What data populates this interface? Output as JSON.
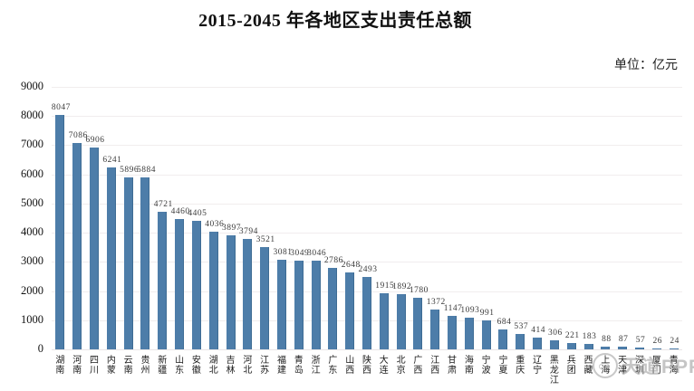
{
  "header": {
    "title": "2015-2045 年各地区支出责任总额",
    "unit_label": "单位：亿元"
  },
  "watermark": {
    "text": "天道PPP"
  },
  "chart_data": {
    "type": "bar",
    "title": "2015-2045 年各地区支出责任总额",
    "unit": "亿元",
    "categories": [
      "湖南",
      "河南",
      "四川",
      "内蒙",
      "云南",
      "贵州",
      "新疆",
      "山东",
      "安徽",
      "湖北",
      "吉林",
      "河北",
      "江苏",
      "福建",
      "青岛",
      "浙江",
      "广东",
      "山西",
      "陕西",
      "大连",
      "北京",
      "广西",
      "江西",
      "甘肃",
      "海南",
      "宁波",
      "宁夏",
      "重庆",
      "辽宁",
      "黑龙江",
      "兵团",
      "西藏",
      "上海",
      "天津",
      "深圳",
      "厦门",
      "青海"
    ],
    "values": [
      8047,
      7086,
      6906,
      6241,
      5896,
      5884,
      4721,
      4460,
      4405,
      4036,
      3897,
      3794,
      3521,
      3081,
      3049,
      3046,
      2786,
      2648,
      2493,
      1915,
      1892,
      1780,
      1372,
      1147,
      1093,
      991,
      684,
      537,
      414,
      306,
      221,
      183,
      88,
      87,
      57,
      26,
      24
    ],
    "xlabel": "",
    "ylabel": "",
    "ylim": [
      0,
      9000
    ],
    "yticks": [
      0,
      1000,
      2000,
      3000,
      4000,
      5000,
      6000,
      7000,
      8000,
      9000
    ],
    "grid": true,
    "legend": false,
    "value_labels_shown": true,
    "bar_color": "#4D7DA9"
  }
}
